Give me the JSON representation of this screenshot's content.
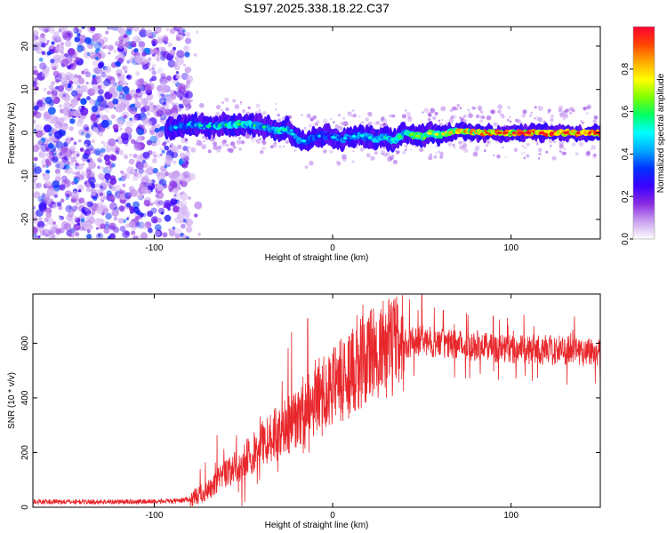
{
  "title": "S197.2025.338.18.22.C37",
  "colors": {
    "spectrum_purple": "#8a2be2",
    "signal": "#e8272b",
    "axis": "#000000"
  },
  "chart_data": [
    {
      "type": "heatmap",
      "xlabel": "Height of straight line (km)",
      "ylabel": "Frequency (Hz)",
      "xlim": [
        -168,
        150
      ],
      "ylim": [
        -24.5,
        24.5
      ],
      "xticks": [
        -100,
        0,
        100
      ],
      "yticks": [
        20,
        10,
        0,
        -10,
        -20
      ],
      "colorbar": {
        "label": "Normalized spectral amplitude",
        "range": [
          0,
          1
        ],
        "ticks": [
          0.0,
          0.2,
          0.4,
          0.6,
          0.8
        ],
        "tick_labels": [
          "0.0",
          "0.2",
          "0.4",
          "0.6",
          "0.8"
        ],
        "colormap": [
          "#ffffff",
          "#c9a0f0",
          "#8a2be2",
          "#3a00ff",
          "#0033ff",
          "#00aaff",
          "#00ffff",
          "#00ff66",
          "#7dff00",
          "#ffff00",
          "#ffaa00",
          "#ff4400",
          "#ff0033"
        ]
      },
      "noise_region_x": [
        -168,
        -80
      ],
      "ridge": {
        "x_start": -93,
        "x_end": 150,
        "frequency_points": [
          [
            -90,
            1
          ],
          [
            -80,
            2
          ],
          [
            -70,
            1.5
          ],
          [
            -60,
            1.8
          ],
          [
            -50,
            2
          ],
          [
            -40,
            1.5
          ],
          [
            -30,
            0.5
          ],
          [
            -25,
            1
          ],
          [
            -20,
            -1.5
          ],
          [
            -15,
            -2
          ],
          [
            -10,
            -1
          ],
          [
            -5,
            -0.5
          ],
          [
            0,
            -1
          ],
          [
            5,
            -1.5
          ],
          [
            10,
            -1
          ],
          [
            15,
            -0.5
          ],
          [
            20,
            -1
          ],
          [
            25,
            -1.5
          ],
          [
            30,
            -1
          ],
          [
            35,
            -2
          ],
          [
            40,
            0
          ],
          [
            45,
            -0.5
          ],
          [
            50,
            -1
          ],
          [
            55,
            0
          ],
          [
            60,
            -0.5
          ],
          [
            65,
            0
          ],
          [
            70,
            0.5
          ],
          [
            80,
            0
          ],
          [
            90,
            0
          ],
          [
            100,
            0
          ],
          [
            110,
            0
          ],
          [
            120,
            0
          ],
          [
            130,
            0
          ],
          [
            140,
            0
          ],
          [
            150,
            0
          ]
        ],
        "amplitude_points": [
          [
            -90,
            0.35
          ],
          [
            -70,
            0.45
          ],
          [
            -50,
            0.5
          ],
          [
            -30,
            0.45
          ],
          [
            -15,
            0.35
          ],
          [
            0,
            0.35
          ],
          [
            20,
            0.4
          ],
          [
            40,
            0.5
          ],
          [
            60,
            0.65
          ],
          [
            70,
            0.75
          ],
          [
            90,
            0.82
          ],
          [
            110,
            0.88
          ],
          [
            130,
            0.92
          ],
          [
            150,
            0.95
          ]
        ]
      }
    },
    {
      "type": "line",
      "xlabel": "Height of straight line (km)",
      "ylabel": "SNR (10 * v/v)",
      "xlim": [
        -168,
        150
      ],
      "ylim": [
        0,
        780
      ],
      "xticks": [
        -100,
        0,
        100
      ],
      "yticks": [
        0,
        200,
        400,
        600
      ],
      "series": [
        {
          "name": "SNR",
          "envelope": [
            [
              -168,
              20
            ],
            [
              -120,
              20
            ],
            [
              -90,
              22
            ],
            [
              -80,
              30
            ],
            [
              -70,
              60
            ],
            [
              -60,
              120
            ],
            [
              -50,
              170
            ],
            [
              -40,
              230
            ],
            [
              -30,
              280
            ],
            [
              -20,
              320
            ],
            [
              -10,
              380
            ],
            [
              0,
              440
            ],
            [
              10,
              500
            ],
            [
              20,
              550
            ],
            [
              30,
              580
            ],
            [
              40,
              600
            ],
            [
              50,
              610
            ],
            [
              60,
              600
            ],
            [
              80,
              590
            ],
            [
              100,
              580
            ],
            [
              120,
              575
            ],
            [
              150,
              570
            ]
          ],
          "spikes": [
            [
              -25,
              580
            ],
            [
              -23,
              640
            ],
            [
              -14,
              690
            ],
            [
              -5,
              550
            ],
            [
              2,
              500
            ],
            [
              17,
              740
            ],
            [
              43,
              760
            ],
            [
              50,
              780
            ],
            [
              57,
              730
            ],
            [
              62,
              720
            ],
            [
              75,
              710
            ],
            [
              90,
              700
            ]
          ]
        }
      ]
    }
  ]
}
